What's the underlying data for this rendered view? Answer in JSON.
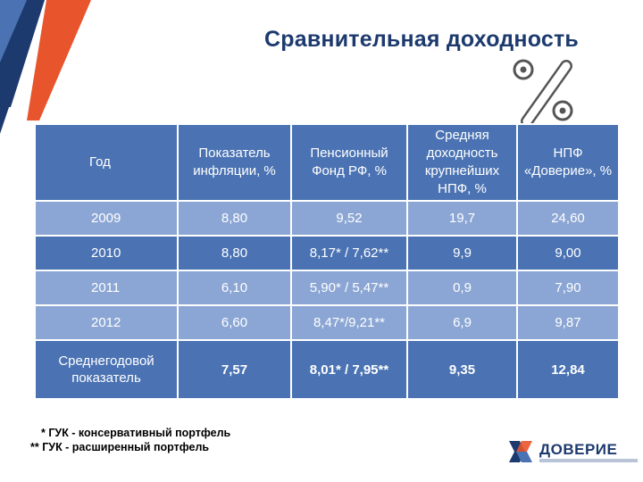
{
  "title": "Сравнительная доходность",
  "table": {
    "headers": [
      "Год",
      "Показатель инфляции, %",
      "Пенсионный Фонд РФ, %",
      "Средняя доходность крупнейших НПФ, %",
      "НПФ «Доверие», %"
    ],
    "rows": [
      [
        "2009",
        "8,80",
        "9,52",
        "19,7",
        "24,60"
      ],
      [
        "2010",
        "8,80",
        "8,17* / 7,62**",
        "9,9",
        "9,00"
      ],
      [
        "2011",
        "6,10",
        "5,90* / 5,47**",
        "0,9",
        "7,90"
      ],
      [
        "2012",
        "6,60",
        "8,47*/9,21**",
        "6,9",
        "9,87"
      ]
    ],
    "average": [
      "Среднегодовой показатель",
      "7,57",
      "8,01* / 7,95**",
      "9,35",
      "12,84"
    ]
  },
  "footnotes": [
    "* ГУК - консервативный портфель",
    "** ГУК - расширенный портфель"
  ],
  "logo": {
    "text": "ДОВЕРИЕ"
  },
  "colors": {
    "header_blue": "#4b73b3",
    "row_light": "#8ba6d4",
    "title_navy": "#1d3a6e",
    "accent_orange": "#e8542b"
  },
  "icons": {
    "decoration": "percent-icon"
  }
}
